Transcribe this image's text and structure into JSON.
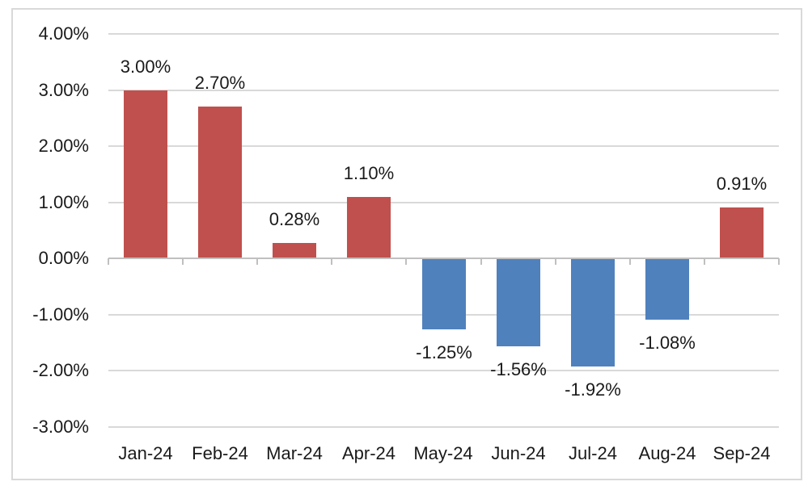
{
  "chart_data": {
    "type": "bar",
    "title": "",
    "xlabel": "",
    "ylabel": "",
    "categories": [
      "Jan-24",
      "Feb-24",
      "Mar-24",
      "Apr-24",
      "May-24",
      "Jun-24",
      "Jul-24",
      "Aug-24",
      "Sep-24"
    ],
    "values": [
      3.0,
      2.7,
      0.28,
      1.1,
      -1.25,
      -1.56,
      -1.92,
      -1.08,
      0.91
    ],
    "data_labels": [
      "3.00%",
      "2.70%",
      "0.28%",
      "1.10%",
      "-1.25%",
      "-1.56%",
      "-1.92%",
      "-1.08%",
      "0.91%"
    ],
    "y_axis": {
      "range": [
        -3.5,
        4.5
      ],
      "ticks": [
        {
          "value": 4,
          "label": "4.00%"
        },
        {
          "value": 3,
          "label": "3.00%"
        },
        {
          "value": 2,
          "label": "2.00%"
        },
        {
          "value": 1,
          "label": "1.00%"
        },
        {
          "value": 0,
          "label": "0.00%"
        },
        {
          "value": -1,
          "label": "-1.00%"
        },
        {
          "value": -2,
          "label": "-2.00%"
        },
        {
          "value": -3,
          "label": "-3.00%"
        }
      ]
    },
    "grid": true,
    "legend": "none",
    "colors": {
      "positive_bar": "#C0504D",
      "negative_bar": "#4F81BD",
      "gridline": "#D9D9D9",
      "axis_line": "#C0C0C0",
      "text": "#1A1A1A",
      "frame_border": "#D9D9D9",
      "background": "#FFFFFF"
    }
  }
}
